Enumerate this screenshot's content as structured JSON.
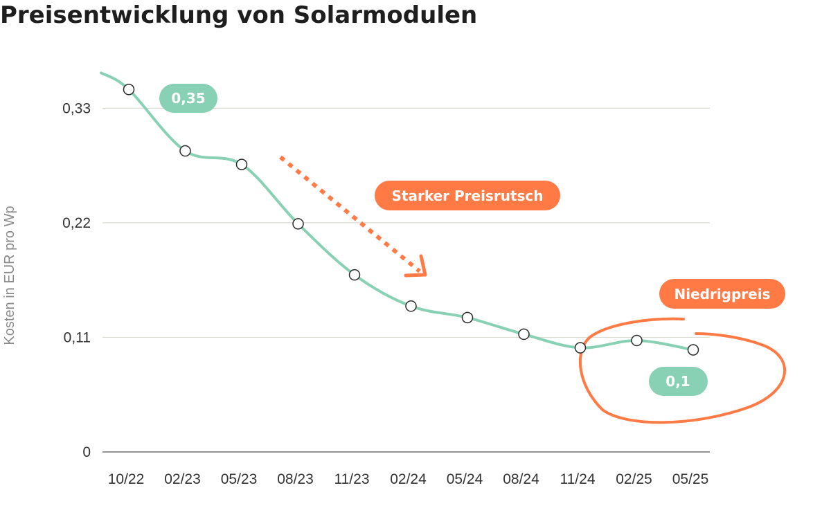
{
  "chart_data": {
    "type": "line",
    "title": "Preisentwicklung von Solarmodulen",
    "xlabel": "",
    "ylabel": "Kosten in EUR  pro Wp",
    "categories": [
      "10/22",
      "02/23",
      "05/23",
      "08/23",
      "11/23",
      "02/24",
      "05/24",
      "08/24",
      "11/24",
      "02/25",
      "05/25"
    ],
    "series": [
      {
        "values": [
          0.348,
          0.289,
          0.276,
          0.219,
          0.17,
          0.14,
          0.129,
          0.113,
          0.1,
          0.107,
          0.098
        ]
      }
    ],
    "yticks": [
      {
        "value": 0,
        "label": "0"
      },
      {
        "value": 0.11,
        "label": "0,11"
      },
      {
        "value": 0.22,
        "label": "0,22"
      },
      {
        "value": 0.33,
        "label": "0,33"
      }
    ],
    "ylim": [
      0,
      0.37
    ],
    "grid": true,
    "annotations": {
      "start_value": "0,35",
      "end_value": "0,1",
      "drop_label": "Starker Preisrutsch",
      "low_label": "Niedrigpreis"
    },
    "colors": {
      "line": "#88d1b5",
      "accent": "#ff7a45",
      "grid": "#dcdcd4",
      "axis": "#555555"
    }
  }
}
